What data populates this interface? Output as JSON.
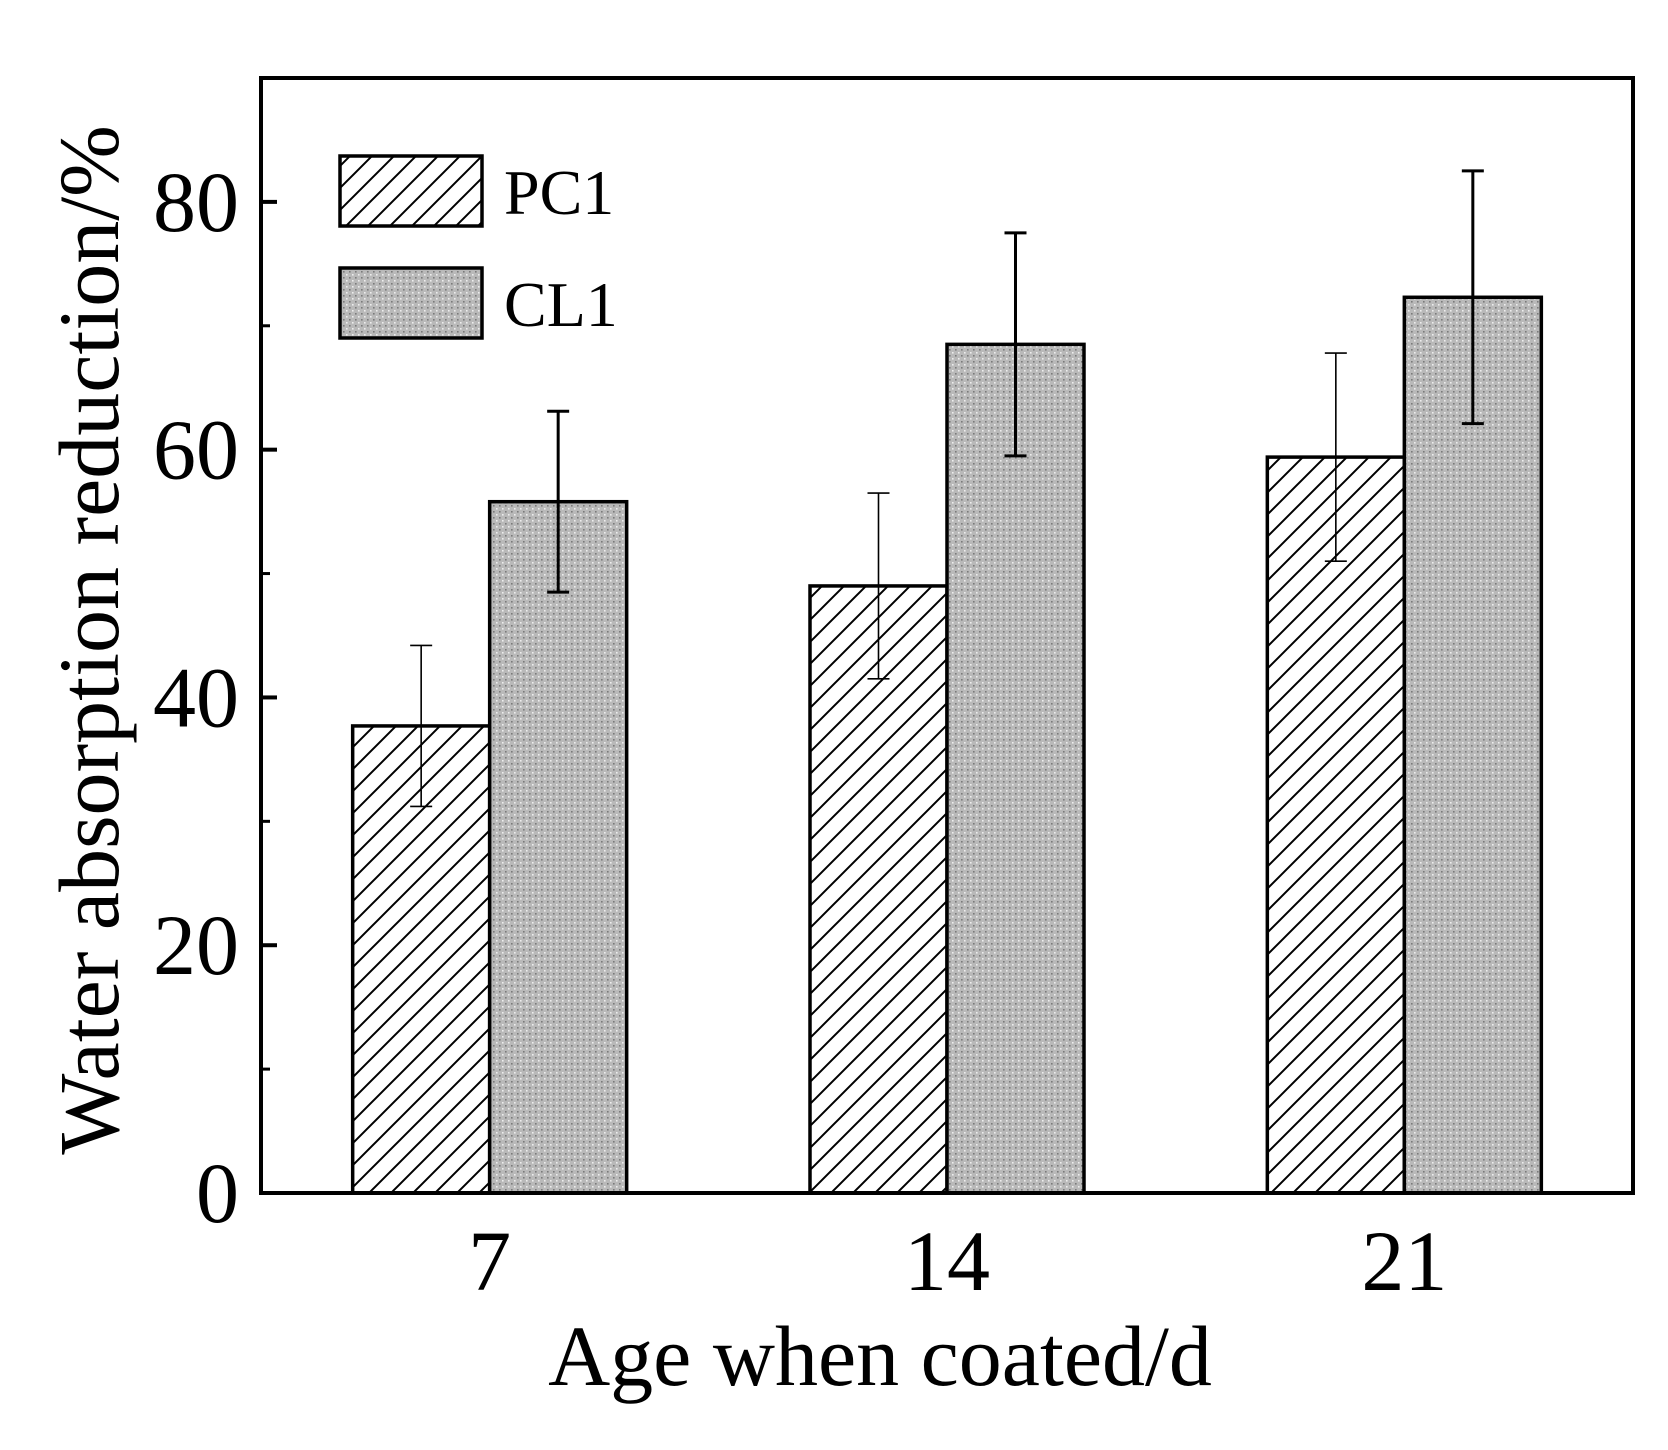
{
  "chart_data": {
    "type": "bar",
    "xlabel": "Age when coated/d",
    "ylabel": "Water absorption reduction/%",
    "categories": [
      "7",
      "14",
      "21"
    ],
    "ylim": [
      0,
      90
    ],
    "yticks": [
      0,
      20,
      40,
      60,
      80
    ],
    "minor_yticks": [
      10,
      30,
      50,
      70
    ],
    "legend_position": "top-left",
    "series": [
      {
        "name": "PC1",
        "pattern": "hatch",
        "fill": "#ffffff",
        "values": [
          37.7,
          49.0,
          59.4
        ],
        "errors": [
          6.5,
          7.5,
          8.4
        ]
      },
      {
        "name": "CL1",
        "pattern": "dots",
        "fill": "#bdbdbd",
        "values": [
          55.8,
          68.5,
          72.3
        ],
        "errors": [
          7.3,
          9.0,
          10.2
        ]
      }
    ]
  }
}
